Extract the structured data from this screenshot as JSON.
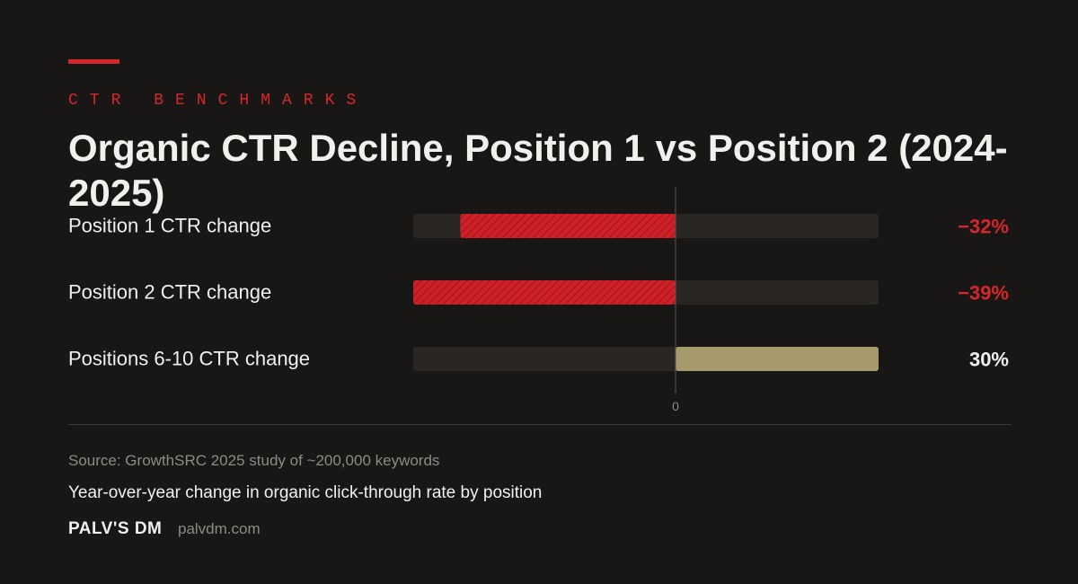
{
  "header": {
    "eyebrow": "CTR BENCHMARKS",
    "title": "Organic CTR Decline, Position 1 vs Position 2 (2024-2025)"
  },
  "chart_data": {
    "type": "bar",
    "orientation": "horizontal",
    "categories": [
      "Position 1 CTR change",
      "Position 2 CTR change",
      "Positions 6-10 CTR change"
    ],
    "values": [
      -32,
      -39,
      30
    ],
    "value_labels": [
      "−32%",
      "−39%",
      "30%"
    ],
    "zero_label": "0",
    "xlim": [
      -39,
      30
    ],
    "colors": {
      "negative": "#cf2027",
      "positive": "#a69a6c",
      "track": "#292624",
      "negative_label": "#d5262b",
      "positive_label": "#f2f0ec"
    }
  },
  "footer": {
    "source": "Source: GrowthSRC 2025 study of ~200,000 keywords",
    "subtitle": "Year-over-year change in organic click-through rate by position",
    "brand": "PALV'S DM",
    "site": "palvdm.com"
  }
}
